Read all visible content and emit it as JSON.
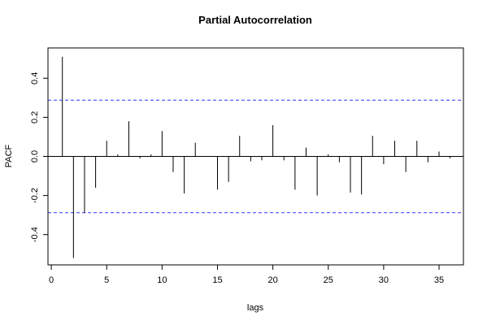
{
  "chart_data": {
    "type": "bar",
    "title": "Partial Autocorrelation",
    "xlabel": "lags",
    "ylabel": "PACF",
    "xlim": [
      -0.3,
      37.2
    ],
    "ylim": [
      -0.555,
      0.555
    ],
    "x_ticks": [
      0,
      5,
      10,
      15,
      20,
      25,
      30,
      35
    ],
    "y_ticks": [
      -0.4,
      -0.2,
      0.0,
      0.2,
      0.4
    ],
    "y_tick_labels": [
      "-0.4",
      "-0.2",
      "0.0",
      "0.2",
      "0.4"
    ],
    "x": [
      1,
      2,
      3,
      4,
      5,
      6,
      7,
      8,
      9,
      10,
      11,
      12,
      13,
      14,
      15,
      16,
      17,
      18,
      19,
      20,
      21,
      22,
      23,
      24,
      25,
      26,
      27,
      28,
      29,
      30,
      31,
      32,
      33,
      34,
      35,
      36
    ],
    "values": [
      0.51,
      -0.52,
      -0.29,
      -0.16,
      0.08,
      0.01,
      0.18,
      -0.01,
      0.01,
      0.13,
      -0.08,
      -0.19,
      0.07,
      0.0,
      -0.17,
      -0.13,
      0.105,
      -0.025,
      -0.02,
      0.16,
      -0.02,
      -0.17,
      0.045,
      -0.2,
      0.01,
      -0.03,
      -0.185,
      -0.195,
      0.105,
      -0.04,
      0.08,
      -0.08,
      0.08,
      -0.03,
      0.025,
      -0.01
    ],
    "confidence_bound": 0.288,
    "colors": {
      "bars": "#000000",
      "confidence_lines": "#3333ff",
      "zero_line": "#000000",
      "frame": "#000000"
    },
    "grid": false
  }
}
